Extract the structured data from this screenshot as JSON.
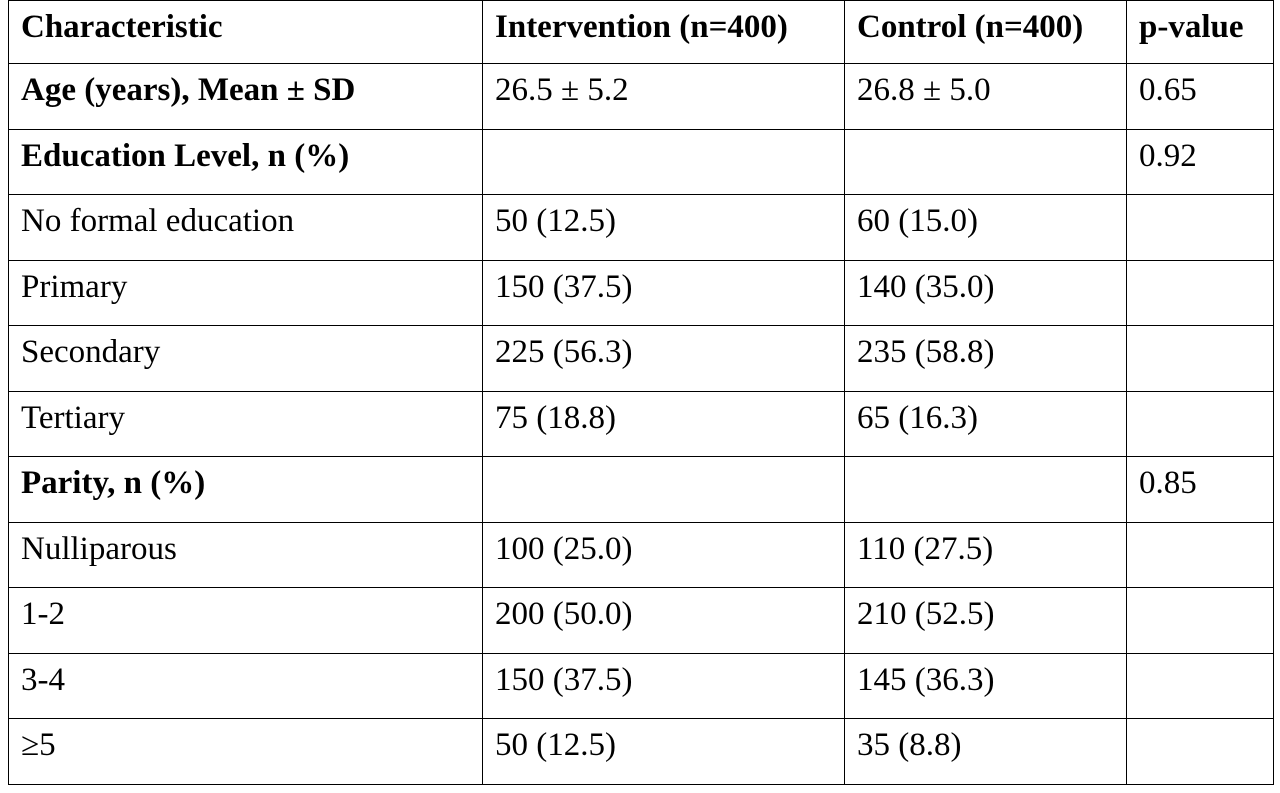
{
  "table": {
    "headers": [
      "Characteristic",
      "Intervention (n=400)",
      "Control (n=400)",
      "p-value"
    ],
    "rows": [
      {
        "label": "Age (years), Mean ± SD",
        "bold": true,
        "intervention": "26.5 ± 5.2",
        "control": "26.8 ± 5.0",
        "p_value": "0.65"
      },
      {
        "label": "Education Level, n (%)",
        "bold": true,
        "intervention": "",
        "control": "",
        "p_value": "0.92"
      },
      {
        "label": "No formal education",
        "bold": false,
        "intervention": "50 (12.5)",
        "control": "60 (15.0)",
        "p_value": ""
      },
      {
        "label": "Primary",
        "bold": false,
        "intervention": "150 (37.5)",
        "control": "140 (35.0)",
        "p_value": ""
      },
      {
        "label": "Secondary",
        "bold": false,
        "intervention": "225 (56.3)",
        "control": "235 (58.8)",
        "p_value": ""
      },
      {
        "label": "Tertiary",
        "bold": false,
        "intervention": "75 (18.8)",
        "control": "65 (16.3)",
        "p_value": ""
      },
      {
        "label": "Parity, n (%)",
        "bold": true,
        "intervention": "",
        "control": "",
        "p_value": "0.85"
      },
      {
        "label": "Nulliparous",
        "bold": false,
        "intervention": "100 (25.0)",
        "control": "110 (27.5)",
        "p_value": ""
      },
      {
        "label": "1-2",
        "bold": false,
        "intervention": "200 (50.0)",
        "control": "210 (52.5)",
        "p_value": ""
      },
      {
        "label": "3-4",
        "bold": false,
        "intervention": "150 (37.5)",
        "control": "145 (36.3)",
        "p_value": ""
      },
      {
        "label": "≥5",
        "bold": false,
        "intervention": "50 (12.5)",
        "control": "35 (8.8)",
        "p_value": ""
      }
    ]
  }
}
